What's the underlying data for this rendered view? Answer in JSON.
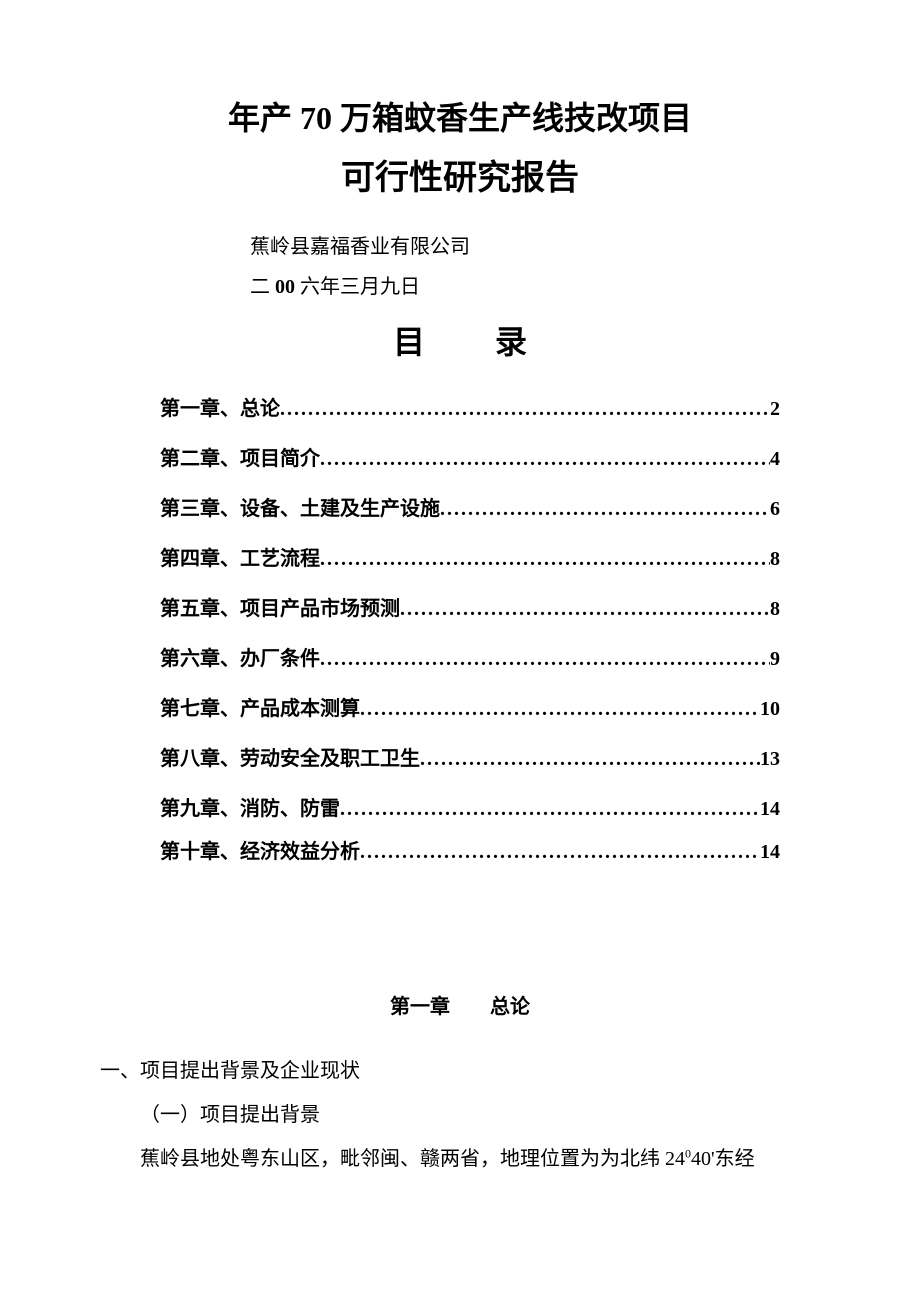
{
  "colors": {
    "background": "#ffffff",
    "text": "#000000"
  },
  "typography": {
    "title_fontsize_pt": 24,
    "subtitle_fontsize_pt": 26,
    "toc_heading_fontsize_pt": 24,
    "body_fontsize_pt": 15,
    "font_family": "SimSun"
  },
  "title": {
    "line1": "年产 70 万箱蚊香生产线技改项目",
    "line2": "可行性研究报告"
  },
  "org": "蕉岭县嘉福香业有限公司",
  "date": {
    "prefix": "二",
    "boldnum": " 00 ",
    "suffix": "六年三月九日"
  },
  "toc_heading": "目录",
  "toc": [
    {
      "label": "第一章、总论",
      "page": "2"
    },
    {
      "label": "第二章、项目简介",
      "page": "4"
    },
    {
      "label": "第三章、设备、土建及生产设施",
      "page": "6"
    },
    {
      "label": "第四章、工艺流程",
      "page": "8"
    },
    {
      "label": "第五章、项目产品市场预测",
      "page": "8"
    },
    {
      "label": "第六章、办厂条件",
      "page": "9"
    },
    {
      "label": "第七章、产品成本测算",
      "page": "10"
    },
    {
      "label": "第八章、劳动安全及职工卫生",
      "page": "13"
    },
    {
      "label": "第九章、消防、防雷",
      "page": "14"
    },
    {
      "label": "第十章、经济效益分析",
      "page": "14"
    }
  ],
  "dots_fill": "........................................................................................................................",
  "chapter1": {
    "heading_left": "第一章",
    "heading_right": "总论",
    "section1": "一、项目提出背景及企业现状",
    "section2": "（一）项目提出背景",
    "para1_before": "蕉岭县地处粤东山区，毗邻闽、赣两省，地理位置为为北纬 24",
    "para1_sup": "0",
    "para1_after": "40'东经"
  }
}
